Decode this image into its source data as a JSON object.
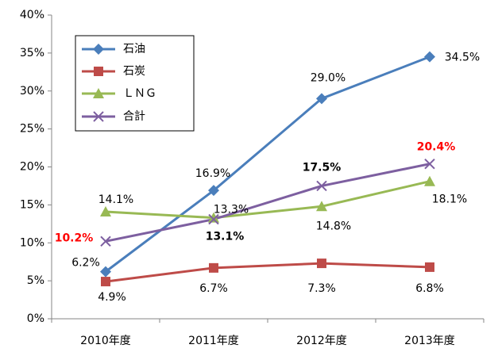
{
  "chart_data": {
    "type": "line",
    "categories": [
      "2010年度",
      "2011年度",
      "2012年度",
      "2013年度"
    ],
    "ylim": [
      0,
      40
    ],
    "yticks": [
      {
        "value": 0,
        "label": "0%"
      },
      {
        "value": 5,
        "label": "5%"
      },
      {
        "value": 10,
        "label": "10%"
      },
      {
        "value": 15,
        "label": "15%"
      },
      {
        "value": 20,
        "label": "20%"
      },
      {
        "value": 25,
        "label": "25%"
      },
      {
        "value": 30,
        "label": "30%"
      },
      {
        "value": 35,
        "label": "35%"
      },
      {
        "value": 40,
        "label": "40%"
      }
    ],
    "grid": false,
    "legend": "upper-left",
    "series": [
      {
        "name": "石油",
        "color": "#4a7ebb",
        "marker": "diamond",
        "values": [
          6.2,
          16.9,
          29.0,
          34.5
        ],
        "value_labels": [
          "6.2%",
          "16.9%",
          "29.0%",
          "34.5%"
        ]
      },
      {
        "name": "石炭",
        "color": "#be4b48",
        "marker": "square",
        "values": [
          4.9,
          6.7,
          7.3,
          6.8
        ],
        "value_labels": [
          "4.9%",
          "6.7%",
          "7.3%",
          "6.8%"
        ]
      },
      {
        "name": "ＬＮＧ",
        "color": "#98b954",
        "marker": "triangle",
        "values": [
          14.1,
          13.3,
          14.8,
          18.1
        ],
        "value_labels": [
          "14.1%",
          "13.3%",
          "14.8%",
          "18.1%"
        ]
      },
      {
        "name": "合計",
        "color": "#7d5fa0",
        "marker": "x",
        "values": [
          10.2,
          13.1,
          17.5,
          20.4
        ],
        "value_labels": [
          "10.2%",
          "13.1%",
          "17.5%",
          "20.4%"
        ],
        "value_label_colors": [
          "#ff0000",
          "#000000",
          "#000000",
          "#ff0000"
        ],
        "value_label_bold": true
      }
    ]
  }
}
